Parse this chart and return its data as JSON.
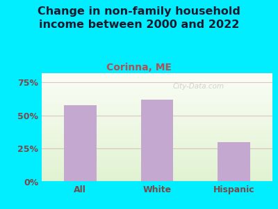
{
  "title": "Change in non-family household\nincome between 2000 and 2022",
  "subtitle": "Corinna, ME",
  "categories": [
    "All",
    "White",
    "Hispanic"
  ],
  "values": [
    58,
    62,
    30
  ],
  "bar_color": "#c5a8d0",
  "title_fontsize": 11.5,
  "subtitle_fontsize": 10,
  "subtitle_color": "#b05050",
  "title_color": "#1a1a2e",
  "tick_color": "#7a4a4a",
  "yticks": [
    0,
    25,
    50,
    75
  ],
  "ylim": [
    0,
    82
  ],
  "bg_outer": "#00eeff",
  "watermark": "City-Data.com",
  "gridline_color": "#d4b0b0",
  "gridline_alpha": 0.7,
  "bar_width": 0.42
}
